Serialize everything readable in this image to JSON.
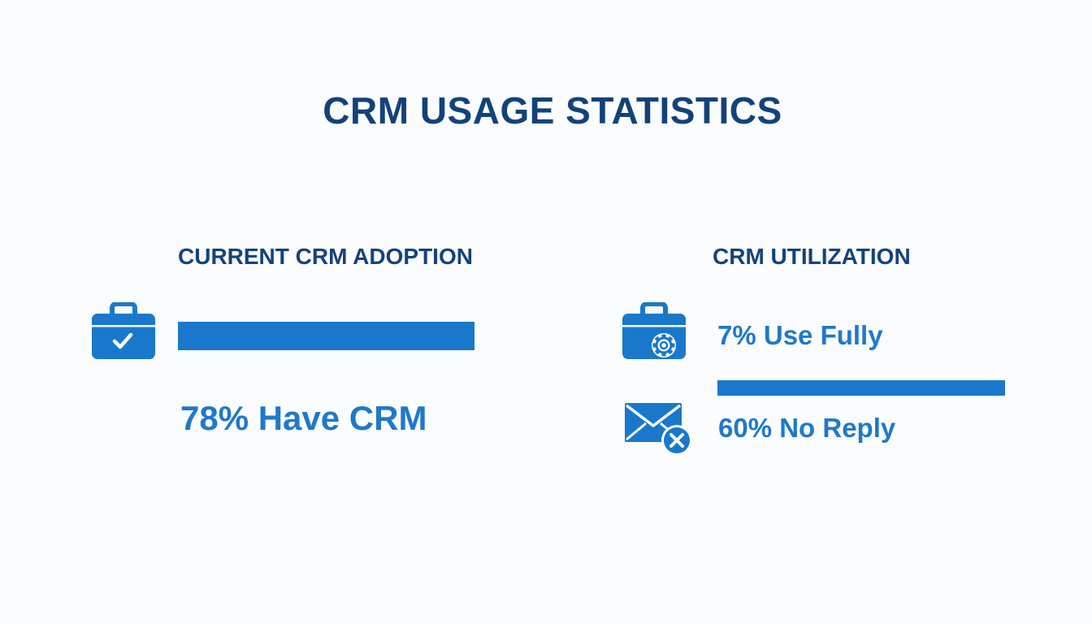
{
  "title": "CRM USAGE STATISTICS",
  "adoption": {
    "heading": "CURRENT CRM ADOPTION",
    "icon": "briefcase-check-icon",
    "stat_label": "78% Have CRM",
    "percent": 78
  },
  "utilization": {
    "heading": "CRM UTILIZATION",
    "use_fully": {
      "icon": "briefcase-gear-icon",
      "label": "7% Use Fully",
      "percent": 7
    },
    "no_reply": {
      "icon": "envelope-x-icon",
      "label": "60% No Reply",
      "percent": 60
    }
  },
  "colors": {
    "title": "#12427a",
    "heading": "#15427c",
    "accent": "#1a78cc",
    "background": "#fbfcfd"
  }
}
